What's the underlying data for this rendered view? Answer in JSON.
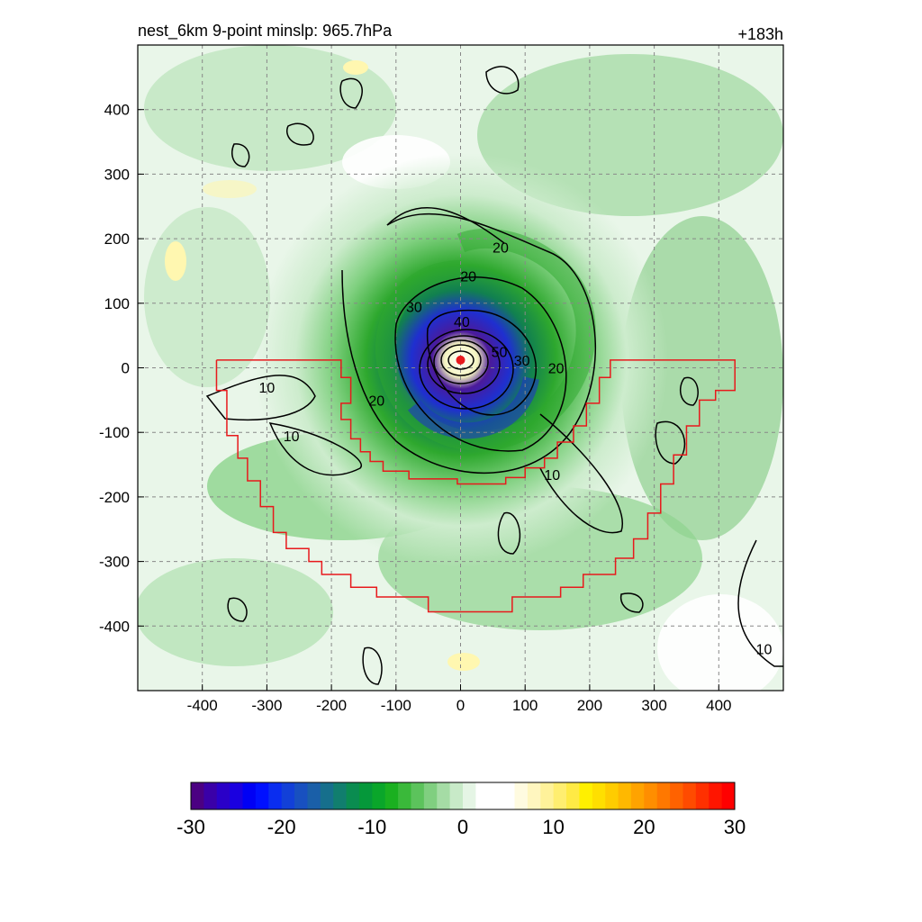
{
  "chart_data": {
    "type": "heatmap",
    "title": "nest_6km  9-point minslp: 965.7hPa",
    "time_label": "+183h",
    "xlabel": "",
    "ylabel": "",
    "xlim": [
      -500,
      500
    ],
    "ylim": [
      -500,
      500
    ],
    "x_ticks": [
      -400,
      -300,
      -200,
      -100,
      0,
      100,
      200,
      300,
      400
    ],
    "y_ticks": [
      400,
      300,
      200,
      100,
      0,
      -100,
      -200,
      -300,
      -400
    ],
    "grid": true,
    "center_marker": {
      "x": 0,
      "y": 12
    },
    "contour_labels": [
      {
        "text": "20",
        "x": 12,
        "y": 142
      },
      {
        "text": "20",
        "x": 62,
        "y": 187
      },
      {
        "text": "30",
        "x": -72,
        "y": 95
      },
      {
        "text": "40",
        "x": 2,
        "y": 72
      },
      {
        "text": "50",
        "x": 60,
        "y": 25
      },
      {
        "text": "30",
        "x": 95,
        "y": 12
      },
      {
        "text": "20",
        "x": 148,
        "y": 0
      },
      {
        "text": "20",
        "x": -130,
        "y": -50
      },
      {
        "text": "10",
        "x": -300,
        "y": -30
      },
      {
        "text": "10",
        "x": -262,
        "y": -105
      },
      {
        "text": "10",
        "x": 142,
        "y": -165
      },
      {
        "text": "10",
        "x": 470,
        "y": -435
      }
    ],
    "red_boundary": [
      [
        -378,
        12
      ],
      [
        -378,
        -35
      ],
      [
        -362,
        -35
      ],
      [
        -362,
        -105
      ],
      [
        -345,
        -105
      ],
      [
        -345,
        -140
      ],
      [
        -330,
        -140
      ],
      [
        -330,
        -175
      ],
      [
        -310,
        -175
      ],
      [
        -310,
        -215
      ],
      [
        -290,
        -215
      ],
      [
        -290,
        -255
      ],
      [
        -270,
        -255
      ],
      [
        -270,
        -280
      ],
      [
        -235,
        -280
      ],
      [
        -235,
        -300
      ],
      [
        -215,
        -300
      ],
      [
        -215,
        -320
      ],
      [
        -170,
        -320
      ],
      [
        -170,
        -340
      ],
      [
        -130,
        -340
      ],
      [
        -130,
        -355
      ],
      [
        -50,
        -355
      ],
      [
        -50,
        -378
      ],
      [
        80,
        -378
      ],
      [
        80,
        -355
      ],
      [
        155,
        -355
      ],
      [
        155,
        -340
      ],
      [
        190,
        -340
      ],
      [
        190,
        -320
      ],
      [
        240,
        -320
      ],
      [
        240,
        -295
      ],
      [
        268,
        -295
      ],
      [
        268,
        -265
      ],
      [
        290,
        -265
      ],
      [
        290,
        -225
      ],
      [
        310,
        -225
      ],
      [
        310,
        -180
      ],
      [
        330,
        -180
      ],
      [
        330,
        -135
      ],
      [
        350,
        -135
      ],
      [
        350,
        -90
      ],
      [
        370,
        -90
      ],
      [
        370,
        -50
      ],
      [
        395,
        -50
      ],
      [
        395,
        -35
      ],
      [
        425,
        -35
      ],
      [
        425,
        12
      ],
      [
        232,
        12
      ],
      [
        232,
        -15
      ],
      [
        215,
        -15
      ],
      [
        215,
        -55
      ],
      [
        195,
        -55
      ],
      [
        195,
        -90
      ],
      [
        175,
        -90
      ],
      [
        175,
        -115
      ],
      [
        150,
        -115
      ],
      [
        150,
        -140
      ],
      [
        130,
        -140
      ],
      [
        130,
        -155
      ],
      [
        100,
        -155
      ],
      [
        100,
        -170
      ],
      [
        70,
        -170
      ],
      [
        70,
        -180
      ],
      [
        -5,
        -180
      ],
      [
        -5,
        -172
      ],
      [
        -80,
        -172
      ],
      [
        -80,
        -160
      ],
      [
        -120,
        -160
      ],
      [
        -120,
        -145
      ],
      [
        -140,
        -145
      ],
      [
        -140,
        -130
      ],
      [
        -155,
        -130
      ],
      [
        -155,
        -110
      ],
      [
        -170,
        -110
      ],
      [
        -170,
        -80
      ],
      [
        -185,
        -80
      ],
      [
        -185,
        -55
      ],
      [
        -170,
        -55
      ],
      [
        -170,
        -15
      ],
      [
        -185,
        -15
      ],
      [
        -185,
        12
      ]
    ],
    "colorbar": {
      "ticks": [
        -30,
        -20,
        -10,
        0,
        10,
        20,
        30
      ],
      "min": -30,
      "max": 30,
      "colors": [
        "#4b0082",
        "#3a00a8",
        "#2a00c8",
        "#1a00e0",
        "#0000f5",
        "#0010ff",
        "#0a2df0",
        "#1240d8",
        "#1850c0",
        "#1a5fa8",
        "#166f8c",
        "#117e6e",
        "#0a8c50",
        "#05983a",
        "#0aa62a",
        "#1ab020",
        "#3ab93a",
        "#5cc35c",
        "#80cf80",
        "#a5dca5",
        "#c8eac8",
        "#e5f5e5",
        "#ffffff",
        "#ffffff",
        "#ffffff",
        "#fffbe0",
        "#fff6bf",
        "#fff29a",
        "#ffee70",
        "#ffea45",
        "#fff000",
        "#ffdf00",
        "#ffcc00",
        "#ffb800",
        "#ffa300",
        "#ff8e00",
        "#ff7800",
        "#ff6200",
        "#ff4b00",
        "#ff3000",
        "#ff1500",
        "#ff0000"
      ]
    },
    "colors": {
      "shade_light": "#cdeccd",
      "shade_mid": "#7fd07f",
      "shade_strong": "#2ea82e",
      "shade_blue": "#1f2fd0",
      "shade_purple": "#4b1a9a",
      "shade_yellow": "#fff7b0",
      "boundary": "#e8191c",
      "contour": "#000000",
      "grid": "#888888"
    }
  }
}
